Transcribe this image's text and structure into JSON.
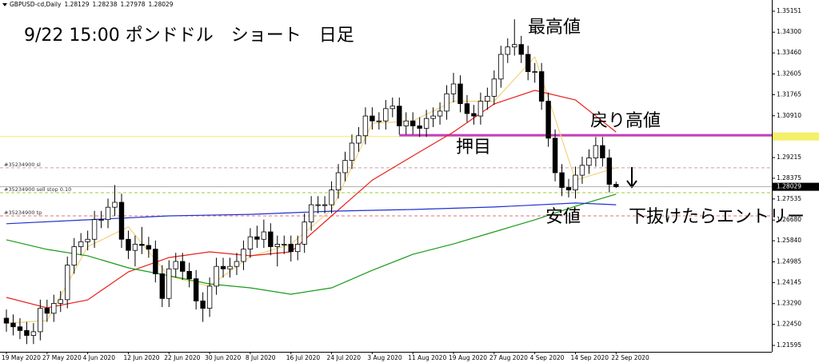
{
  "chart_data": {
    "type": "candlestick",
    "symbol": "GBPUSD-cd,Daily",
    "header_ohlc": [
      1.28129,
      1.28238,
      1.27978,
      1.28029
    ],
    "title": "9/22 15:00 ポンドドル　ショート　日足",
    "annotations": [
      "最高値",
      "戻り高値",
      "押目",
      "安値",
      "下抜けたらエントリー"
    ],
    "categories": [
      "19 May 2020",
      null,
      null,
      null,
      null,
      null,
      "27 May 2020",
      null,
      null,
      null,
      null,
      null,
      "4 Jun 2020",
      null,
      null,
      null,
      null,
      null,
      "12 Jun 2020",
      null,
      null,
      null,
      null,
      null,
      "22 Jun 2020",
      null,
      null,
      null,
      null,
      null,
      "30 Jun 2020",
      null,
      null,
      null,
      null,
      null,
      "8 Jul 2020",
      null,
      null,
      null,
      null,
      null,
      "16 Jul 2020",
      null,
      null,
      null,
      null,
      null,
      "24 Jul 2020",
      null,
      null,
      null,
      null,
      null,
      "3 Aug 2020",
      null,
      null,
      null,
      null,
      null,
      "11 Aug 2020",
      null,
      null,
      null,
      null,
      null,
      "19 Aug 2020",
      null,
      null,
      null,
      null,
      null,
      "27 Aug 2020",
      null,
      null,
      null,
      null,
      null,
      "4 Sep 2020",
      null,
      null,
      null,
      null,
      null,
      "14 Sep 2020",
      null,
      null,
      null,
      null,
      null,
      "22 Sep 2020"
    ],
    "open": [
      1.227,
      1.225,
      1.2235,
      1.222,
      1.22,
      1.2215,
      1.231,
      1.229,
      1.233,
      1.2345,
      1.2485,
      1.256,
      1.258,
      1.259,
      1.267,
      1.267,
      1.272,
      1.274,
      1.259,
      1.2545,
      1.257,
      1.2565,
      1.255,
      1.245,
      1.235,
      1.247,
      1.25,
      1.246,
      1.243,
      1.234,
      1.231,
      1.24,
      1.248,
      1.247,
      1.248,
      1.25,
      1.255,
      1.26,
      1.259,
      1.262,
      1.256,
      1.257,
      1.257,
      1.254,
      1.257,
      1.266,
      1.273,
      1.273,
      1.273,
      1.279,
      1.286,
      1.291,
      1.298,
      1.301,
      1.309,
      1.307,
      1.307,
      1.312,
      1.313,
      1.305,
      1.307,
      1.305,
      1.304,
      1.308,
      1.309,
      1.311,
      1.318,
      1.322,
      1.314,
      1.31,
      1.309,
      1.315,
      1.317,
      1.324,
      1.334,
      1.337,
      1.338,
      1.334,
      1.327,
      1.327,
      1.315,
      1.3,
      1.286,
      1.28,
      1.279,
      1.285,
      1.289,
      1.292,
      1.297,
      1.292,
      1.28129
    ],
    "close": [
      1.225,
      1.2235,
      1.222,
      1.22,
      1.2215,
      1.231,
      1.229,
      1.233,
      1.2345,
      1.2485,
      1.256,
      1.258,
      1.259,
      1.267,
      1.267,
      1.272,
      1.274,
      1.259,
      1.2545,
      1.257,
      1.2565,
      1.255,
      1.245,
      1.235,
      1.247,
      1.25,
      1.246,
      1.243,
      1.234,
      1.231,
      1.24,
      1.248,
      1.247,
      1.248,
      1.25,
      1.255,
      1.26,
      1.259,
      1.262,
      1.256,
      1.257,
      1.257,
      1.254,
      1.257,
      1.266,
      1.273,
      1.273,
      1.273,
      1.279,
      1.286,
      1.291,
      1.298,
      1.301,
      1.309,
      1.307,
      1.307,
      1.312,
      1.313,
      1.305,
      1.307,
      1.305,
      1.304,
      1.308,
      1.309,
      1.311,
      1.318,
      1.322,
      1.314,
      1.31,
      1.309,
      1.315,
      1.317,
      1.324,
      1.334,
      1.337,
      1.338,
      1.334,
      1.327,
      1.327,
      1.315,
      1.3,
      1.286,
      1.28,
      1.279,
      1.285,
      1.289,
      1.292,
      1.297,
      1.292,
      1.2813,
      1.28029
    ],
    "high": [
      1.2305,
      1.2285,
      1.227,
      1.2255,
      1.225,
      1.2345,
      1.2345,
      1.2365,
      1.238,
      1.252,
      1.2595,
      1.2615,
      1.2625,
      1.2705,
      1.2705,
      1.2755,
      1.281,
      1.2775,
      1.2625,
      1.2605,
      1.264,
      1.26,
      1.2585,
      1.2485,
      1.2505,
      1.2535,
      1.2535,
      1.2495,
      1.2465,
      1.2375,
      1.2435,
      1.2515,
      1.2515,
      1.2515,
      1.2535,
      1.2585,
      1.2635,
      1.2645,
      1.267,
      1.2655,
      1.2605,
      1.2605,
      1.2605,
      1.2605,
      1.2695,
      1.2765,
      1.2765,
      1.2765,
      1.2825,
      1.2895,
      1.2945,
      1.3015,
      1.3045,
      1.3125,
      1.3125,
      1.3105,
      1.3155,
      1.3165,
      1.3165,
      1.3105,
      1.3105,
      1.3085,
      1.3115,
      1.3125,
      1.3145,
      1.3215,
      1.3265,
      1.3255,
      1.3175,
      1.3135,
      1.3185,
      1.3205,
      1.3275,
      1.3375,
      1.3405,
      1.3482,
      1.3415,
      1.3375,
      1.3305,
      1.3305,
      1.3185,
      1.3035,
      1.2895,
      1.2835,
      1.2885,
      1.2925,
      1.2955,
      1.3005,
      1.3005,
      1.2955,
      1.28238
    ],
    "low": [
      1.2215,
      1.22,
      1.2185,
      1.2165,
      1.2165,
      1.218,
      1.2255,
      1.2255,
      1.2295,
      1.231,
      1.245,
      1.2525,
      1.2545,
      1.2555,
      1.2635,
      1.2635,
      1.2685,
      1.2555,
      1.251,
      1.248,
      1.253,
      1.2515,
      1.2415,
      1.2315,
      1.2315,
      1.2435,
      1.2425,
      1.2395,
      1.2305,
      1.2255,
      1.2275,
      1.2365,
      1.2435,
      1.2435,
      1.2445,
      1.2465,
      1.2515,
      1.2555,
      1.2555,
      1.2525,
      1.248,
      1.253,
      1.25,
      1.2505,
      1.2535,
      1.2625,
      1.2695,
      1.2695,
      1.2695,
      1.2755,
      1.2825,
      1.2875,
      1.2945,
      1.2975,
      1.3035,
      1.3035,
      1.3035,
      1.3085,
      1.3015,
      1.3015,
      1.3015,
      1.3005,
      1.3005,
      1.3045,
      1.3055,
      1.3075,
      1.3145,
      1.3105,
      1.3065,
      1.3055,
      1.3055,
      1.3115,
      1.3135,
      1.3205,
      1.3305,
      1.3335,
      1.3305,
      1.3235,
      1.3225,
      1.3115,
      1.2965,
      1.2825,
      1.2765,
      1.276,
      1.2755,
      1.2815,
      1.2855,
      1.2885,
      1.2885,
      1.278,
      1.27978
    ],
    "overlays": [
      {
        "color": "#f2d27a",
        "x": [
          0,
          6,
          12,
          18,
          24,
          30,
          36,
          42,
          48,
          54,
          60,
          66,
          72,
          78,
          84,
          90
        ],
        "values": [
          1.225,
          1.226,
          1.256,
          1.264,
          1.244,
          1.24,
          1.252,
          1.257,
          1.271,
          1.306,
          1.307,
          1.315,
          1.315,
          1.333,
          1.283,
          1.288
        ]
      },
      {
        "color": "#e8201c",
        "x": [
          0,
          6,
          12,
          18,
          24,
          30,
          36,
          42,
          48,
          54,
          60,
          66,
          72,
          78,
          84,
          90
        ],
        "values": [
          1.2354,
          1.2312,
          1.2344,
          1.2458,
          1.2516,
          1.2539,
          1.2523,
          1.2539,
          1.2685,
          1.283,
          1.2928,
          1.3025,
          1.3139,
          1.3194,
          1.3155,
          1.3025
        ]
      },
      {
        "color": "#1a9a1a",
        "x": [
          0,
          6,
          12,
          18,
          24,
          30,
          36,
          42,
          48,
          54,
          60,
          66,
          72,
          78,
          84,
          90
        ],
        "values": [
          1.2588,
          1.2549,
          1.2523,
          1.2474,
          1.2442,
          1.2409,
          1.2393,
          1.2367,
          1.2393,
          1.2464,
          1.2529,
          1.2571,
          1.262,
          1.2669,
          1.2724,
          1.2773
        ]
      },
      {
        "color": "#2030d0",
        "x": [
          0,
          12,
          24,
          36,
          48,
          60,
          72,
          84,
          90
        ],
        "values": [
          1.2653,
          1.2669,
          1.2685,
          1.2691,
          1.2704,
          1.2711,
          1.2721,
          1.2737,
          1.273
        ]
      }
    ],
    "levels": [
      {
        "value": 1.3007,
        "color": "#f5ef6a",
        "style": "solid",
        "axis_tag": true
      },
      {
        "value": 1.3012,
        "color": "#c23ec8",
        "style": "solid",
        "start": 58,
        "width": 3
      },
      {
        "value": 1.288,
        "color": "#c8a0a0",
        "style": "dashed",
        "label": "#35234900 sl"
      },
      {
        "value": 1.2779,
        "color": "#9acd32",
        "style": "dashed",
        "label": "#35234900 sell stop 0.10"
      },
      {
        "value": 1.2685,
        "color": "#e07070",
        "style": "dashed",
        "label": "#35234900 tp"
      }
    ],
    "last_price": 1.28029,
    "ylim": [
      1.21336,
      1.35605
    ],
    "yticks": [
      1.35151,
      {
        "value": 1.343,
        "label": "1.34300"
      },
      {
        "value": 1.3346,
        "label": "1.33460"
      },
      1.32605,
      1.31765,
      {
        "value": 1.3091,
        "label": "1.30910"
      },
      {
        "value": 1.3007,
        "label": "1.30070"
      },
      1.29215,
      1.28375,
      1.27535,
      {
        "value": 1.2668,
        "label": "1.26680"
      },
      {
        "value": 1.2584,
        "label": "1.25840"
      },
      1.24985,
      1.24145,
      {
        "value": 1.2329,
        "label": "1.23290"
      },
      {
        "value": 1.2245,
        "label": "1.22450"
      },
      1.21595
    ]
  }
}
